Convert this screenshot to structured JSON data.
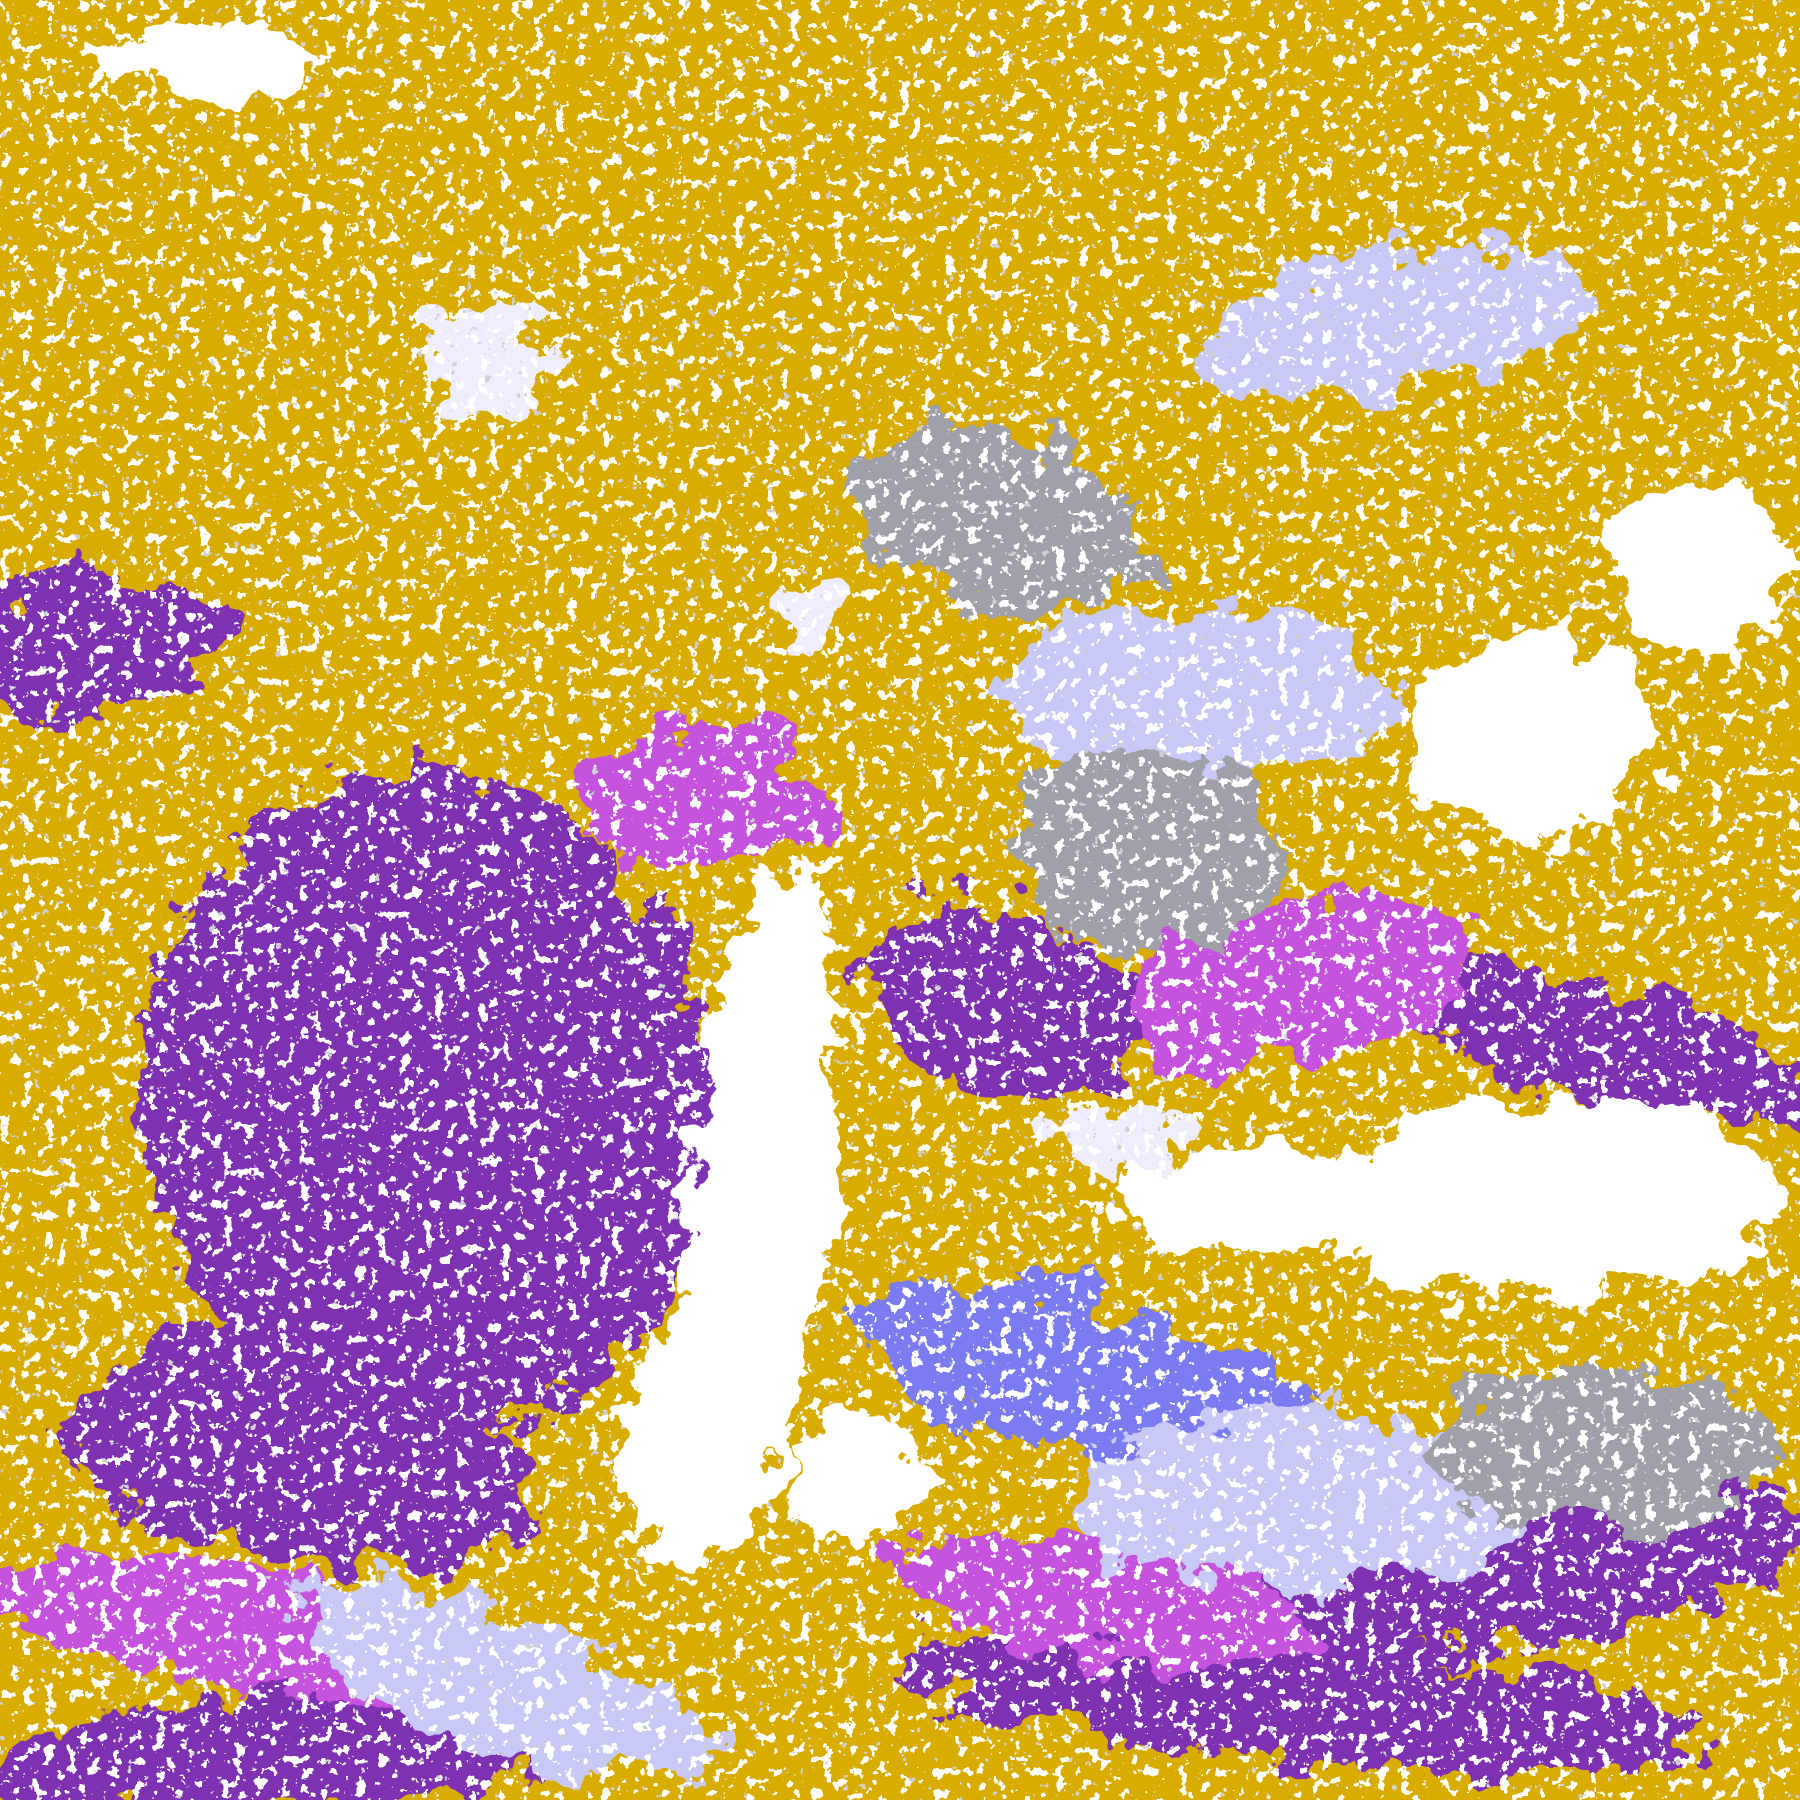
{
  "image": {
    "kind": "false-color satellite classification map",
    "palette": {
      "land_gold": "#D9AC00",
      "ocean_purple": "#7E30B2",
      "magenta": "#C553DD",
      "blue_violet": "#7C7CF2",
      "lavender": "#C9C9F7",
      "pale": "#EEEEFF",
      "gray": "#A0A0A8",
      "white": "#FFFFFF"
    }
  }
}
